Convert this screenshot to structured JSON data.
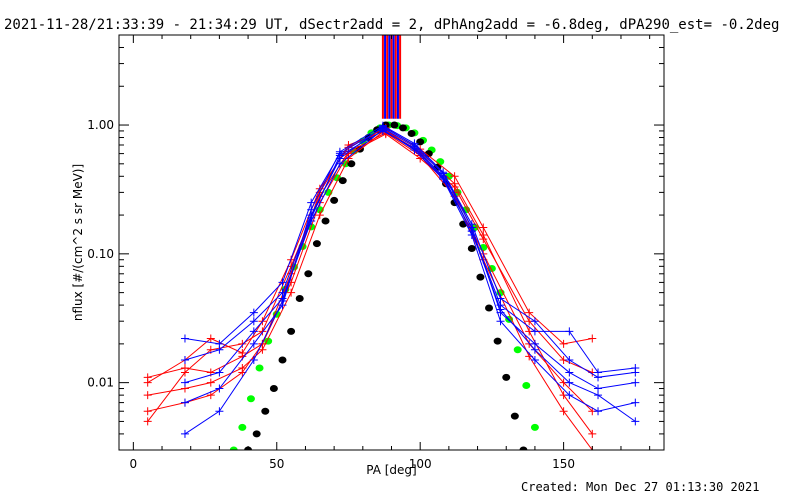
{
  "header": {
    "title": "2021-11-28/21:33:39 - 21:34:29 UT, dSectr2add = 2, dPhAng2add = -6.8deg, dPA290_est= -0.2deg"
  },
  "footer": {
    "created": "Created: Mon Dec 27 01:13:30 2021"
  },
  "colors": {
    "red": "#ff0000",
    "blue": "#0000ff",
    "green": "#00ff00",
    "black": "#000000",
    "axes": "#000000"
  },
  "chart_data": {
    "type": "line",
    "xlabel": "PA [deg]",
    "ylabel": "nflux [#/(cm^2 s sr MeV)]",
    "xlim": [
      -5,
      185
    ],
    "ylim": [
      0.003,
      5
    ],
    "yscale": "log",
    "xticks": [
      0,
      50,
      100,
      150
    ],
    "xtick_labels": [
      "0",
      "50",
      "100",
      "150"
    ],
    "yticks": [
      0.01,
      0.1,
      1.0
    ],
    "ytick_labels": [
      "0.01",
      "0.10",
      "1.00"
    ],
    "grid": false,
    "vertical_lines": {
      "x_start": 87,
      "x_end": 93,
      "count": 9,
      "colors": [
        "red",
        "blue"
      ]
    },
    "series": [
      {
        "color": "green",
        "style": "dots",
        "x": [
          35,
          38,
          41,
          44,
          47,
          50,
          53,
          56,
          59,
          62,
          65,
          68,
          71,
          74,
          77,
          80,
          83,
          86,
          89,
          92,
          95,
          98,
          101,
          104,
          107,
          110,
          113,
          116,
          119,
          122,
          125,
          128,
          131,
          134,
          137,
          140
        ],
        "y": [
          0.003,
          0.0045,
          0.0075,
          0.013,
          0.021,
          0.034,
          0.053,
          0.079,
          0.114,
          0.162,
          0.22,
          0.3,
          0.39,
          0.5,
          0.63,
          0.75,
          0.87,
          0.95,
          1.0,
          0.99,
          0.95,
          0.87,
          0.76,
          0.64,
          0.52,
          0.4,
          0.3,
          0.22,
          0.16,
          0.112,
          0.077,
          0.05,
          0.031,
          0.018,
          0.0095,
          0.0045
        ]
      },
      {
        "color": "black",
        "style": "dots",
        "x": [
          40,
          43,
          46,
          49,
          52,
          55,
          58,
          61,
          64,
          67,
          70,
          73,
          76,
          79,
          82,
          85,
          88,
          91,
          94,
          97,
          100,
          103,
          106,
          109,
          112,
          115,
          118,
          121,
          124,
          127,
          130,
          133,
          136
        ],
        "y": [
          0.003,
          0.004,
          0.006,
          0.009,
          0.015,
          0.025,
          0.045,
          0.07,
          0.12,
          0.18,
          0.26,
          0.37,
          0.5,
          0.65,
          0.8,
          0.92,
          1.0,
          1.0,
          0.95,
          0.86,
          0.74,
          0.6,
          0.47,
          0.35,
          0.25,
          0.17,
          0.11,
          0.066,
          0.038,
          0.021,
          0.011,
          0.0055,
          0.003
        ]
      },
      {
        "color": "red",
        "style": "line-plus",
        "x": [
          5,
          18,
          27,
          38,
          45,
          55,
          65,
          75,
          88,
          100,
          112,
          122,
          138,
          150,
          160
        ],
        "y": [
          0.011,
          0.013,
          0.012,
          0.016,
          0.02,
          0.06,
          0.25,
          0.6,
          0.85,
          0.55,
          0.33,
          0.13,
          0.03,
          0.015,
          0.012
        ]
      },
      {
        "color": "red",
        "style": "line-plus",
        "x": [
          5,
          18,
          27,
          38,
          45,
          55,
          65,
          75,
          88,
          100,
          112,
          122,
          138,
          150,
          160
        ],
        "y": [
          0.008,
          0.009,
          0.01,
          0.013,
          0.018,
          0.05,
          0.2,
          0.55,
          0.92,
          0.6,
          0.3,
          0.1,
          0.02,
          0.01,
          0.006
        ]
      },
      {
        "color": "red",
        "style": "line-plus",
        "x": [
          5,
          18,
          27,
          38,
          45,
          55,
          65,
          75,
          88,
          100,
          112,
          122,
          138,
          150,
          160
        ],
        "y": [
          0.006,
          0.007,
          0.008,
          0.012,
          0.02,
          0.07,
          0.3,
          0.7,
          0.9,
          0.62,
          0.35,
          0.14,
          0.025,
          0.008,
          0.004
        ]
      },
      {
        "color": "red",
        "style": "line-plus",
        "x": [
          5,
          18,
          27,
          38,
          45,
          55,
          65,
          75,
          88,
          100,
          112,
          122,
          138,
          150,
          160
        ],
        "y": [
          0.005,
          0.012,
          0.018,
          0.02,
          0.025,
          0.08,
          0.28,
          0.62,
          0.87,
          0.58,
          0.28,
          0.09,
          0.016,
          0.006,
          0.003
        ]
      },
      {
        "color": "red",
        "style": "line-plus",
        "x": [
          5,
          18,
          27,
          38,
          45,
          55,
          65,
          75,
          88,
          100,
          112,
          122,
          138,
          150,
          160
        ],
        "y": [
          0.01,
          0.015,
          0.022,
          0.017,
          0.03,
          0.09,
          0.32,
          0.67,
          0.95,
          0.65,
          0.4,
          0.16,
          0.035,
          0.02,
          0.022
        ]
      },
      {
        "color": "blue",
        "style": "line-plus",
        "x": [
          18,
          30,
          42,
          52,
          62,
          72,
          87,
          98,
          108,
          118,
          128,
          140,
          152,
          162,
          175
        ],
        "y": [
          0.022,
          0.02,
          0.035,
          0.06,
          0.25,
          0.6,
          0.95,
          0.68,
          0.4,
          0.15,
          0.04,
          0.025,
          0.025,
          0.012,
          0.013
        ]
      },
      {
        "color": "blue",
        "style": "line-plus",
        "x": [
          18,
          30,
          42,
          52,
          62,
          72,
          87,
          98,
          108,
          118,
          128,
          140,
          152,
          162,
          175
        ],
        "y": [
          0.015,
          0.018,
          0.03,
          0.05,
          0.2,
          0.55,
          0.97,
          0.7,
          0.42,
          0.16,
          0.035,
          0.02,
          0.012,
          0.009,
          0.01
        ]
      },
      {
        "color": "blue",
        "style": "line-plus",
        "x": [
          18,
          30,
          42,
          52,
          62,
          72,
          87,
          98,
          108,
          118,
          128,
          140,
          152,
          162,
          175
        ],
        "y": [
          0.01,
          0.012,
          0.025,
          0.045,
          0.18,
          0.5,
          0.92,
          0.64,
          0.38,
          0.14,
          0.03,
          0.015,
          0.008,
          0.006,
          0.007
        ]
      },
      {
        "color": "blue",
        "style": "line-plus",
        "x": [
          18,
          30,
          42,
          52,
          62,
          72,
          87,
          98,
          108,
          118,
          128,
          140,
          152,
          162,
          175
        ],
        "y": [
          0.007,
          0.009,
          0.02,
          0.04,
          0.22,
          0.62,
          0.99,
          0.72,
          0.43,
          0.17,
          0.045,
          0.03,
          0.015,
          0.011,
          0.012
        ]
      },
      {
        "color": "blue",
        "style": "line-plus",
        "x": [
          18,
          30,
          42,
          52,
          62,
          72,
          87,
          98,
          108,
          118,
          128,
          140,
          152,
          162,
          175
        ],
        "y": [
          0.004,
          0.006,
          0.015,
          0.043,
          0.19,
          0.58,
          0.9,
          0.66,
          0.39,
          0.15,
          0.037,
          0.018,
          0.01,
          0.008,
          0.005
        ]
      }
    ]
  }
}
